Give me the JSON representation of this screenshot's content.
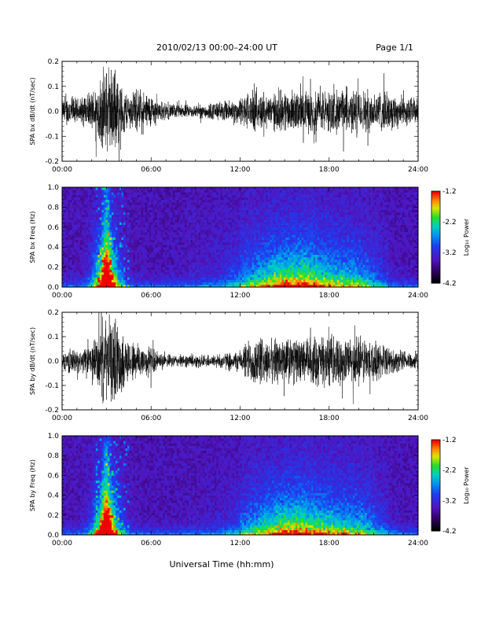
{
  "header": {
    "title": "2010/02/13  00:00–24:00 UT",
    "page": "Page 1/1"
  },
  "footer": {
    "xlabel": "Universal Time (hh:mm)"
  },
  "colors": {
    "trace": "#000000",
    "background": "#ffffff"
  },
  "chart_data": [
    {
      "type": "line",
      "ylabel": "SPA bx dB/dt (nT/sec)",
      "ylim": [
        -0.2,
        0.2
      ],
      "yticks": [
        "0.2",
        "0.1",
        "0.0",
        "-0.1",
        "-0.2"
      ],
      "xlim": [
        0,
        24
      ],
      "xticks": [
        "00:00",
        "06:00",
        "12:00",
        "18:00",
        "24:00"
      ],
      "envelope": {
        "hours": [
          0,
          0.5,
          1,
          1.5,
          2,
          2.5,
          2.8,
          3.0,
          3.3,
          3.6,
          4,
          4.5,
          5,
          5.5,
          6,
          6.5,
          7,
          8,
          9,
          10,
          11,
          12,
          12.5,
          13,
          14,
          15,
          16,
          17,
          18,
          19,
          20,
          21,
          22,
          23,
          24
        ],
        "amplitude": [
          0.05,
          0.08,
          0.06,
          0.07,
          0.09,
          0.15,
          0.2,
          0.2,
          0.2,
          0.2,
          0.12,
          0.08,
          0.1,
          0.09,
          0.08,
          0.05,
          0.04,
          0.03,
          0.03,
          0.04,
          0.05,
          0.06,
          0.09,
          0.09,
          0.08,
          0.1,
          0.09,
          0.1,
          0.1,
          0.1,
          0.1,
          0.1,
          0.09,
          0.07,
          0.06
        ]
      }
    },
    {
      "type": "heatmap",
      "ylabel": "SPA bx Freq (Hz)",
      "ylim": [
        0.0,
        1.0
      ],
      "yticks": [
        "1.0",
        "0.8",
        "0.6",
        "0.4",
        "0.2",
        "0.0"
      ],
      "xlim": [
        0,
        24
      ],
      "xticks": [
        "00:00",
        "06:00",
        "12:00",
        "18:00",
        "24:00"
      ],
      "colorbar": {
        "label": "Log₁₀ Power",
        "range": [
          -4.2,
          -1.2
        ],
        "ticks": [
          "-1.2",
          "-2.2",
          "-3.2",
          "-4.2"
        ]
      }
    },
    {
      "type": "line",
      "ylabel": "SPA by dB/dt (nT/sec)",
      "ylim": [
        -0.2,
        0.2
      ],
      "yticks": [
        "0.2",
        "0.1",
        "0.0",
        "-0.1",
        "-0.2"
      ],
      "xlim": [
        0,
        24
      ],
      "xticks": [
        "00:00",
        "06:00",
        "12:00",
        "18:00",
        "24:00"
      ],
      "envelope": {
        "hours": [
          0,
          0.5,
          1,
          1.5,
          2,
          2.5,
          2.8,
          3.0,
          3.3,
          3.6,
          4,
          4.5,
          5,
          5.5,
          6,
          6.5,
          7,
          8,
          9,
          10,
          11,
          12,
          12.5,
          13,
          14,
          15,
          16,
          17,
          18,
          19,
          20,
          21,
          22,
          23,
          24
        ],
        "amplitude": [
          0.04,
          0.06,
          0.05,
          0.06,
          0.08,
          0.15,
          0.2,
          0.2,
          0.2,
          0.2,
          0.15,
          0.1,
          0.1,
          0.08,
          0.07,
          0.04,
          0.03,
          0.03,
          0.03,
          0.03,
          0.04,
          0.05,
          0.1,
          0.12,
          0.1,
          0.12,
          0.1,
          0.12,
          0.12,
          0.1,
          0.12,
          0.1,
          0.06,
          0.05,
          0.04
        ]
      }
    },
    {
      "type": "heatmap",
      "ylabel": "SPA by Freq (Hz)",
      "ylim": [
        0.0,
        1.0
      ],
      "yticks": [
        "1.0",
        "0.8",
        "0.6",
        "0.4",
        "0.2",
        "0.0"
      ],
      "xlim": [
        0,
        24
      ],
      "xticks": [
        "00:00",
        "06:00",
        "12:00",
        "18:00",
        "24:00"
      ],
      "colorbar": {
        "label": "Log₁₀ Power",
        "range": [
          -4.2,
          -1.2
        ],
        "ticks": [
          "-1.2",
          "-2.2",
          "-3.2",
          "-4.2"
        ]
      }
    }
  ]
}
